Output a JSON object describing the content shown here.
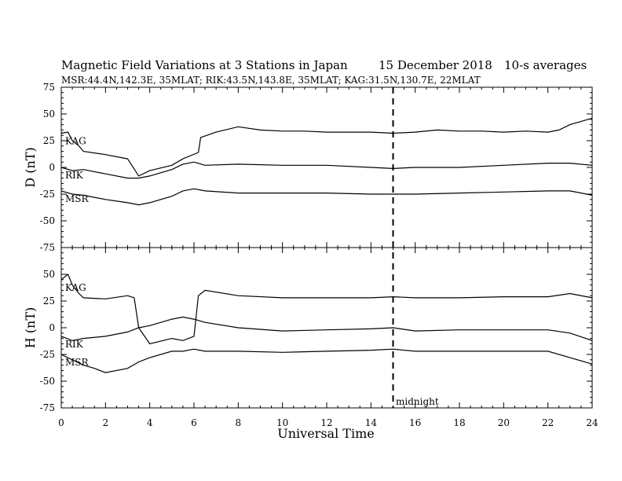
{
  "header": {
    "title": "Magnetic Field Variations at 3 Stations in Japan",
    "date": "15 December 2018",
    "averages": "10-s averages",
    "stations_line": "MSR:44.4N,142.3E, 35MLAT;  RIK:43.5N,143.8E, 35MLAT;  KAG:31.5N,130.7E, 22MLAT"
  },
  "chart_data": [
    {
      "type": "line",
      "panel": "D",
      "ylabel": "D (nT)",
      "xlim": [
        0,
        24
      ],
      "ylim": [
        -75,
        75
      ],
      "yticks": [
        "75",
        "50",
        "25",
        "0",
        "-25",
        "-50",
        "-75"
      ],
      "series": [
        {
          "name": "KAG",
          "x": [
            0,
            0.3,
            0.5,
            0.8,
            1,
            2,
            3,
            3.5,
            4,
            5,
            5.5,
            6.2,
            6.3,
            7,
            8,
            9,
            10,
            11,
            12,
            13,
            14,
            15,
            16,
            17,
            18,
            19,
            20,
            21,
            22,
            22.5,
            23,
            24
          ],
          "y": [
            32,
            33,
            25,
            20,
            15,
            12,
            8,
            -8,
            -3,
            2,
            8,
            14,
            28,
            33,
            38,
            35,
            34,
            34,
            33,
            33,
            33,
            32,
            33,
            35,
            34,
            34,
            33,
            34,
            33,
            35,
            40,
            46
          ]
        },
        {
          "name": "RIK",
          "x": [
            0,
            0.5,
            1,
            2,
            3,
            3.5,
            4,
            5,
            5.5,
            6,
            6.5,
            8,
            10,
            12,
            14,
            15,
            16,
            18,
            20,
            22,
            23,
            24
          ],
          "y": [
            0,
            -3,
            -2,
            -6,
            -10,
            -10,
            -8,
            -2,
            3,
            5,
            2,
            3,
            2,
            2,
            0,
            -1,
            0,
            0,
            2,
            4,
            4,
            2
          ]
        },
        {
          "name": "MSR",
          "x": [
            0,
            0.5,
            1,
            2,
            3,
            3.5,
            4,
            5,
            5.5,
            6,
            6.5,
            8,
            10,
            12,
            14,
            15,
            16,
            18,
            20,
            22,
            23,
            24
          ],
          "y": [
            -22,
            -25,
            -26,
            -30,
            -33,
            -35,
            -33,
            -27,
            -22,
            -20,
            -22,
            -24,
            -24,
            -24,
            -25,
            -25,
            -25,
            -24,
            -23,
            -22,
            -22,
            -26
          ]
        }
      ]
    },
    {
      "type": "line",
      "panel": "H",
      "ylabel": "H (nT)",
      "xlim": [
        0,
        24
      ],
      "ylim": [
        -75,
        75
      ],
      "yticks": [
        "50",
        "25",
        "0",
        "-25",
        "-50",
        "-75"
      ],
      "series": [
        {
          "name": "KAG",
          "x": [
            0,
            0.3,
            0.5,
            0.8,
            1,
            2,
            3,
            3.3,
            3.5,
            4,
            5,
            5.5,
            6,
            6.2,
            6.5,
            8,
            10,
            12,
            14,
            15,
            16,
            18,
            20,
            22,
            23,
            24
          ],
          "y": [
            45,
            50,
            40,
            32,
            28,
            27,
            30,
            28,
            0,
            -15,
            -10,
            -12,
            -8,
            30,
            35,
            30,
            28,
            28,
            28,
            29,
            28,
            28,
            29,
            29,
            32,
            28
          ]
        },
        {
          "name": "RIK",
          "x": [
            0,
            0.5,
            1,
            2,
            3,
            3.5,
            4,
            5,
            5.5,
            6,
            6.5,
            8,
            10,
            12,
            14,
            15,
            16,
            18,
            20,
            22,
            23,
            24
          ],
          "y": [
            -8,
            -12,
            -10,
            -8,
            -4,
            0,
            2,
            8,
            10,
            8,
            5,
            0,
            -3,
            -2,
            -1,
            0,
            -3,
            -2,
            -2,
            -2,
            -5,
            -12
          ]
        },
        {
          "name": "MSR",
          "x": [
            0,
            0.5,
            1,
            1.5,
            2,
            3,
            3.5,
            4,
            5,
            5.5,
            6,
            6.5,
            8,
            10,
            12,
            14,
            15,
            16,
            18,
            20,
            22,
            23,
            24
          ],
          "y": [
            -25,
            -30,
            -35,
            -38,
            -42,
            -38,
            -32,
            -28,
            -22,
            -22,
            -20,
            -22,
            -22,
            -23,
            -22,
            -21,
            -20,
            -22,
            -22,
            -22,
            -22,
            -28,
            -34
          ]
        }
      ]
    }
  ],
  "x_axis": {
    "label": "Universal Time",
    "ticks": [
      "0",
      "2",
      "4",
      "6",
      "8",
      "10",
      "12",
      "14",
      "16",
      "18",
      "20",
      "22",
      "24"
    ]
  },
  "annotation": {
    "label": "midnight",
    "x": 15
  }
}
